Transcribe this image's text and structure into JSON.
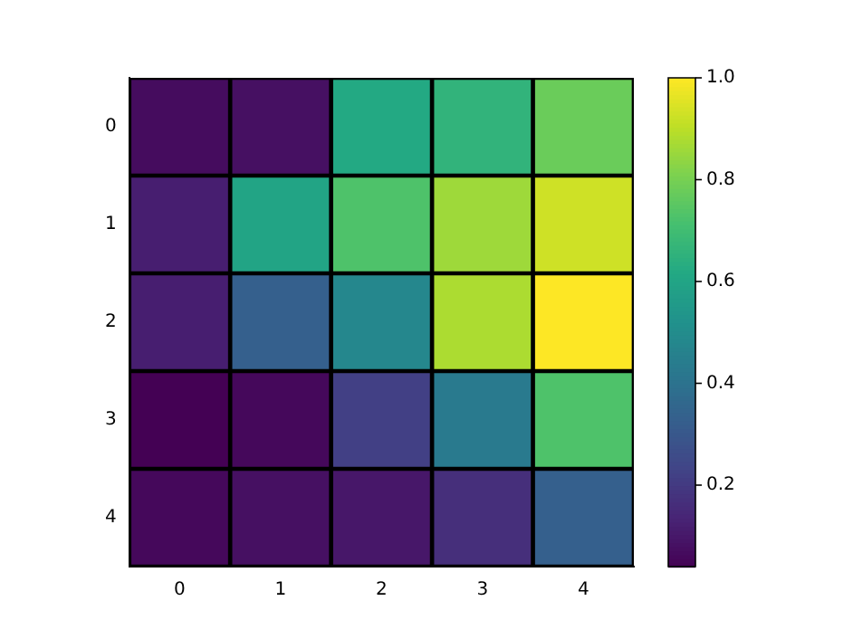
{
  "chart_data": {
    "type": "heatmap",
    "categories": [
      "0",
      "1",
      "2",
      "3",
      "4"
    ],
    "y_categories": [
      "0",
      "1",
      "2",
      "3",
      "4"
    ],
    "cells": [
      [
        0.07,
        0.08,
        0.62,
        0.66,
        0.78
      ],
      [
        0.12,
        0.6,
        0.73,
        0.86,
        0.93
      ],
      [
        0.12,
        0.33,
        0.48,
        0.88,
        1.0
      ],
      [
        0.04,
        0.06,
        0.22,
        0.43,
        0.73
      ],
      [
        0.06,
        0.08,
        0.1,
        0.17,
        0.33
      ]
    ],
    "clim": [
      0.04,
      1.0
    ],
    "cticks": [
      0.2,
      0.4,
      0.6,
      0.8,
      {
        "value": 1,
        "label": "1.0"
      }
    ]
  }
}
